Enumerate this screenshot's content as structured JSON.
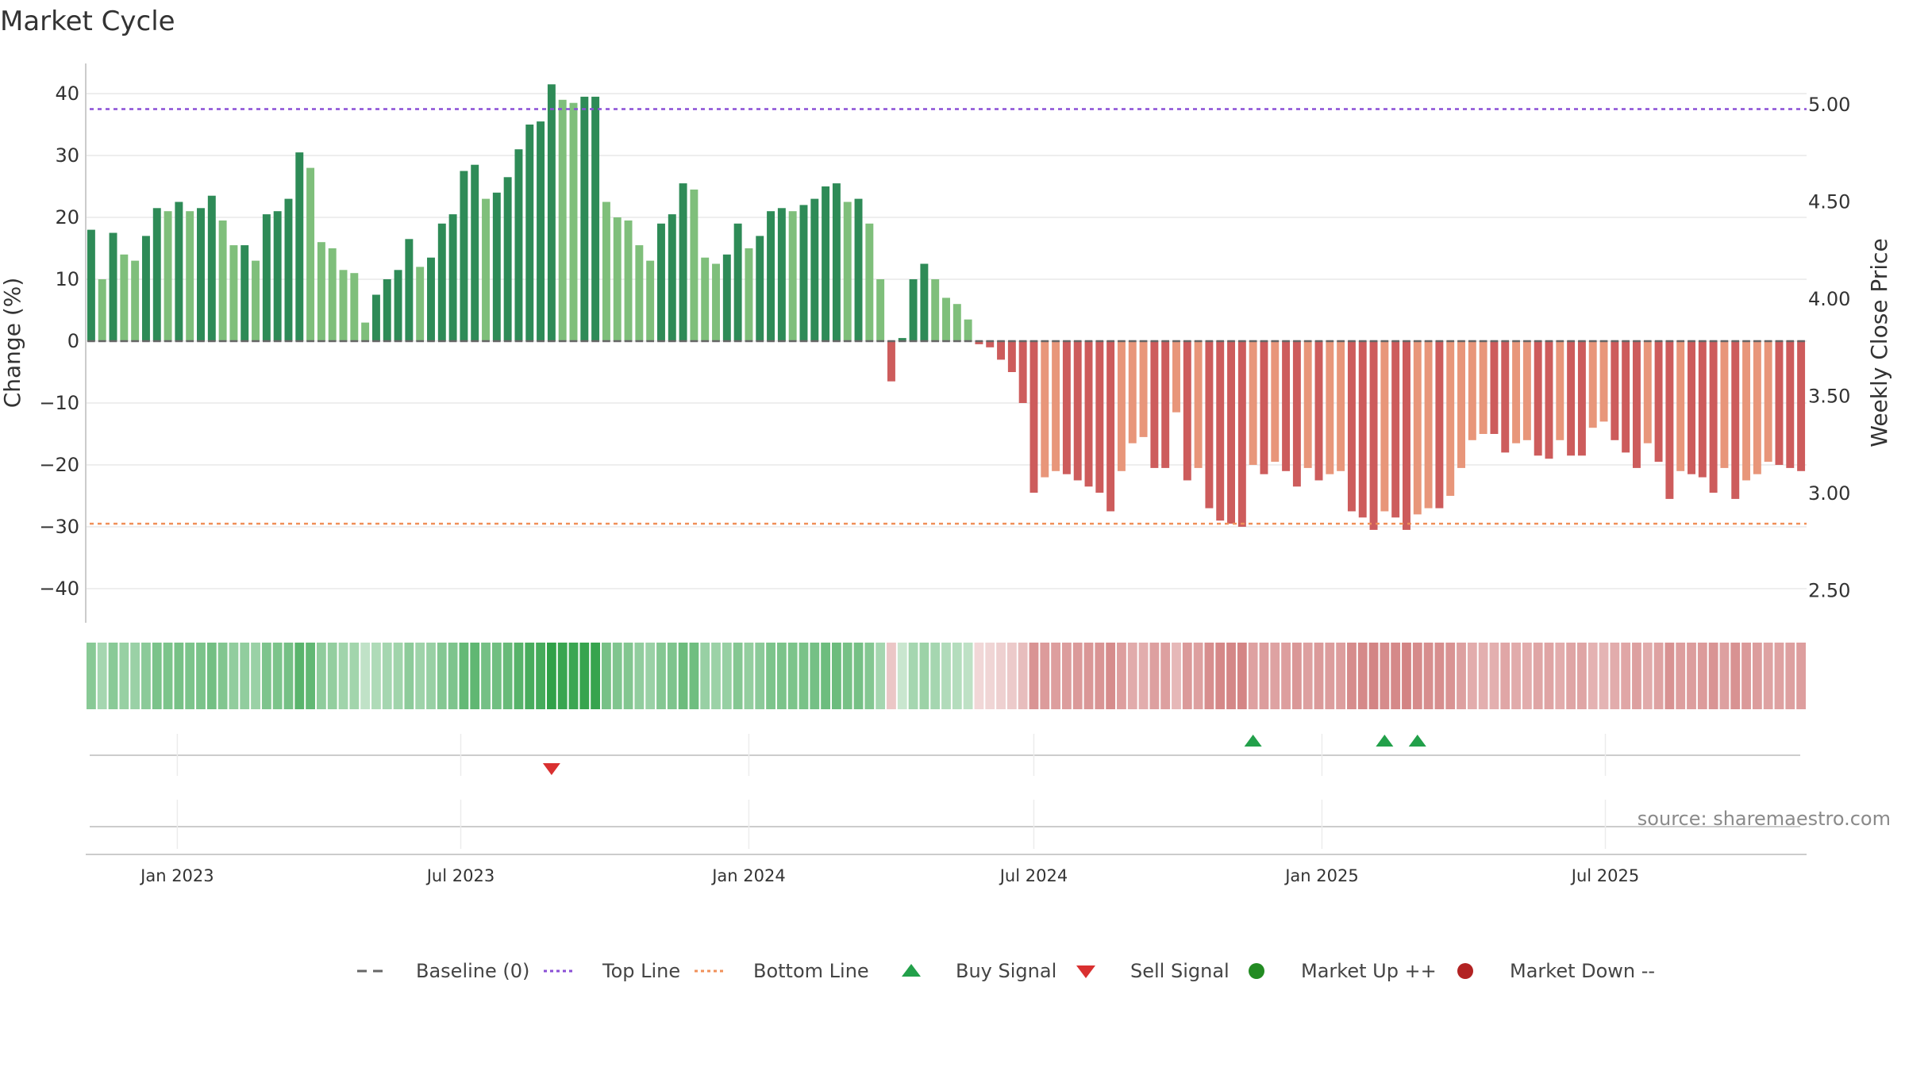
{
  "chart_data": {
    "type": "bar",
    "title": "Market Cycle",
    "ylabel_left": "Change (%)",
    "ylabel_right": "Weekly Close Price",
    "yticks_left": [
      "40",
      "30",
      "20",
      "10",
      "0",
      "−10",
      "−20",
      "−30",
      "−40"
    ],
    "yticks_right": [
      "5.00",
      "4.50",
      "4.00",
      "3.50",
      "3.00",
      "2.50"
    ],
    "ylim_left": [
      -45,
      45
    ],
    "xticks": [
      "Jan 2023",
      "Jul 2023",
      "Jan 2024",
      "Jul 2024",
      "Jan 2025",
      "Jul 2025"
    ],
    "start_week": "2022-11-07",
    "week_count": 158,
    "top_line": 37.5,
    "bottom_line": -29.5,
    "grid": true,
    "legend_position": "bottom",
    "source": "source: sharemaestro.com",
    "legend": [
      {
        "label": "Baseline (0)",
        "icon": "dash-line",
        "color": "#666666"
      },
      {
        "label": "Top Line",
        "icon": "dotted-line",
        "color": "#8a4fd6"
      },
      {
        "label": "Bottom Line",
        "icon": "dotted-line",
        "color": "#f0905a"
      },
      {
        "label": "Buy Signal",
        "icon": "triangle-up",
        "color": "#22a04a"
      },
      {
        "label": "Sell Signal",
        "icon": "triangle-down",
        "color": "#d93030"
      },
      {
        "label": "Market Up ++",
        "icon": "circle",
        "color": "#228b22"
      },
      {
        "label": "Market Down --",
        "icon": "circle",
        "color": "#b22222"
      }
    ],
    "signals": [
      {
        "type": "sell",
        "week": 42
      },
      {
        "type": "buy",
        "week": 106
      },
      {
        "type": "buy",
        "week": 118
      },
      {
        "type": "buy",
        "week": 121
      }
    ],
    "series": [
      {
        "name": "Change (%)",
        "values": [
          18,
          10,
          17.5,
          14,
          13,
          17,
          21.5,
          21,
          22.5,
          21,
          21.5,
          23.5,
          19.5,
          15.5,
          15.5,
          13,
          20.5,
          21,
          23,
          30.5,
          28,
          16,
          15,
          11.5,
          11,
          3,
          7.5,
          10,
          11.5,
          16.5,
          12,
          13.5,
          19,
          20.5,
          27.5,
          28.5,
          23,
          24,
          26.5,
          31,
          35,
          35.5,
          41.5,
          39,
          38.5,
          39.5,
          39.5,
          22.5,
          20,
          19.5,
          15.5,
          13,
          19,
          20.5,
          25.5,
          24.5,
          13.5,
          12.5,
          14,
          19,
          15,
          17,
          21,
          21.5,
          21,
          22,
          23,
          25,
          25.5,
          22.5,
          23,
          19,
          10,
          -6.5,
          0.5,
          10,
          12.5,
          10,
          7,
          6,
          3.5,
          -0.5,
          -1,
          -3,
          -5,
          -10,
          -24.5,
          -22,
          -21,
          -21.5,
          -22.5,
          -23.5,
          -24.5,
          -27.5,
          -21,
          -16.5,
          -15.5,
          -20.5,
          -20.5,
          -11.5,
          -22.5,
          -20.5,
          -27,
          -29,
          -29.5,
          -30,
          -20,
          -21.5,
          -19.5,
          -21,
          -23.5,
          -20.5,
          -22.5,
          -21.5,
          -21,
          -27.5,
          -28.5,
          -30.5,
          -27.5,
          -28.5,
          -30.5,
          -28,
          -27,
          -27,
          -25,
          -20.5,
          -16,
          -15,
          -15,
          -18,
          -16.5,
          -16,
          -18.5,
          -19,
          -16,
          -18.5,
          -18.5,
          -14,
          -13,
          -16,
          -18,
          -20.5,
          -16.5,
          -19.5,
          -25.5,
          -21,
          -21.5,
          -22,
          -24.5,
          -20.5,
          -25.5,
          -22.5,
          -21.5,
          -19.5,
          -20,
          -20.5,
          -21
        ]
      }
    ]
  }
}
